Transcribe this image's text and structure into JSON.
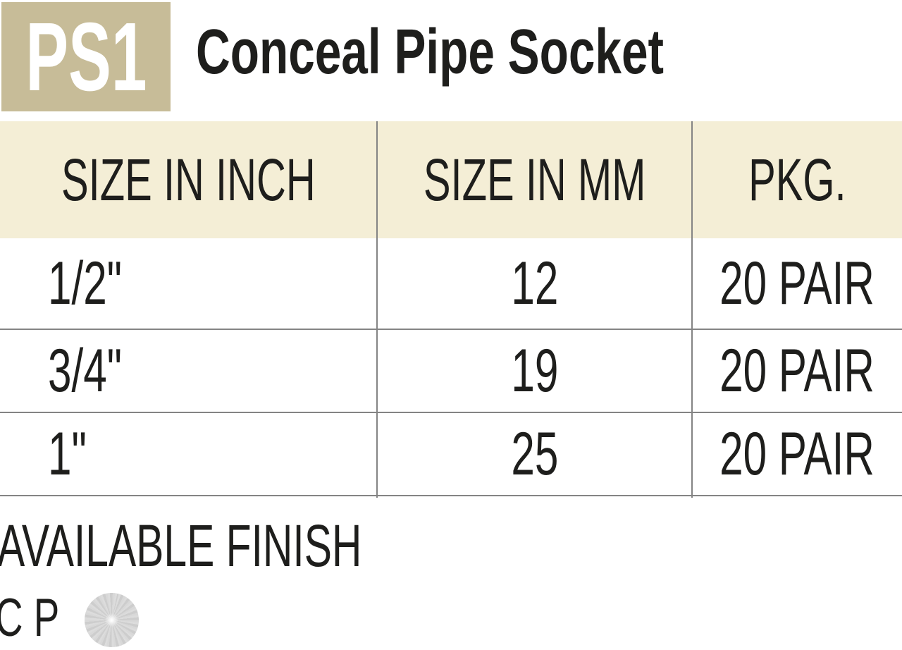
{
  "product": {
    "code": "PS1",
    "name": "Conceal Pipe Socket"
  },
  "table": {
    "columns": [
      "SIZE IN INCH",
      "SIZE IN MM",
      "PKG."
    ],
    "rows": [
      [
        "1/2\"",
        "12",
        "20 PAIR"
      ],
      [
        "3/4\"",
        "19",
        "20 PAIR"
      ],
      [
        "1\"",
        "25",
        "20 PAIR"
      ]
    ]
  },
  "finish": {
    "label": "AVAILABLE FINISH",
    "code": "C P",
    "swatch_icon": "chrome-disc-icon"
  },
  "colors": {
    "badge_bg": "#c7bc98",
    "table_header_bg": "#f4eed6",
    "text": "#1e1e1c",
    "badge_text": "#ffffff",
    "grid_line": "#848484",
    "swatch_silver": "#d6d6d6"
  }
}
